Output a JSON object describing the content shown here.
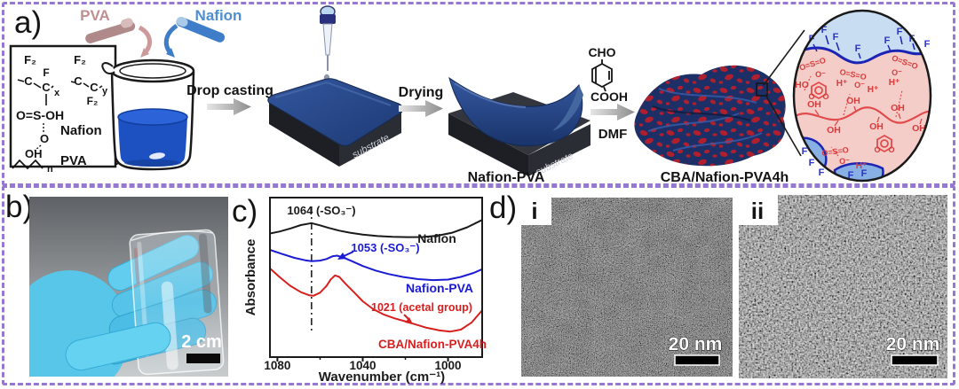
{
  "figure": {
    "panel_a": "a)",
    "panel_b": "b)",
    "panel_c": "c)",
    "panel_d": "d)",
    "tem_i": "i",
    "tem_ii": "ii",
    "border_color": "#9678d2"
  },
  "panel_a": {
    "pva_label": "PVA",
    "nafion_label": "Nafion",
    "structure": {
      "f2": "F₂",
      "c": "C",
      "f": "F",
      "x": "x",
      "y": "y",
      "sulfonic": "O=S-OH",
      "o": "O",
      "oh": "OH",
      "n": "n",
      "nafion": "Nafion",
      "pva": "PVA"
    },
    "step1": "Drop casting",
    "step2": "Drying",
    "step3_solvent": "DMF",
    "molecule": {
      "cho": "CHO",
      "cooh": "COOH"
    },
    "substrate_label": "substrate",
    "film1_label": "Nafion-PVA",
    "film2_label": "CBA/Nafion-PVA4h",
    "inset": {
      "f": "F",
      "oh": "OH",
      "ho": "HO",
      "h_plus": "H⁺",
      "sulfonate": "O=S=O",
      "o_minus": "O⁻",
      "o": "O"
    },
    "colors": {
      "liquid_blue": "#1d50c0",
      "film_navy": "#23407a",
      "membrane_red": "#b01f2e",
      "inset_blue": "#c8ddf1",
      "inset_pink": "#f4cdc9"
    }
  },
  "panel_b": {
    "scale_bar": "2 cm"
  },
  "panel_d": {
    "scale_bar_i": "20 nm",
    "scale_bar_ii": "20 nm"
  },
  "chart_data": {
    "type": "line",
    "title": "",
    "xlabel": "Wavenumber (cm⁻¹)",
    "ylabel": "Absorbance",
    "xlim": [
      1083.5,
      984
    ],
    "ylim": [
      0,
      1
    ],
    "x_ticks": [
      1080,
      1040,
      1000
    ],
    "x_minor_ticks": [
      1060,
      1020
    ],
    "grid": false,
    "legend_position": "inline-labels",
    "vline": {
      "x": 1064,
      "style": "dash-dot"
    },
    "series": [
      {
        "name": "Nafion",
        "color": "#1a1a1a",
        "points": [
          [
            1083.5,
            0.775
          ],
          [
            1079,
            0.787
          ],
          [
            1074,
            0.806
          ],
          [
            1069,
            0.828
          ],
          [
            1064,
            0.84
          ],
          [
            1060,
            0.826
          ],
          [
            1056,
            0.81
          ],
          [
            1051,
            0.793
          ],
          [
            1046,
            0.78
          ],
          [
            1040,
            0.768
          ],
          [
            1033,
            0.759
          ],
          [
            1026,
            0.754
          ],
          [
            1019,
            0.752
          ],
          [
            1012,
            0.753
          ],
          [
            1005,
            0.761
          ],
          [
            998,
            0.78
          ],
          [
            991,
            0.814
          ],
          [
            984,
            0.86
          ]
        ]
      },
      {
        "name": "Nafion-PVA",
        "color": "#1b1bd4",
        "points": [
          [
            1083.5,
            0.672
          ],
          [
            1078,
            0.648
          ],
          [
            1072,
            0.622
          ],
          [
            1067,
            0.607
          ],
          [
            1064,
            0.601
          ],
          [
            1060,
            0.605
          ],
          [
            1057,
            0.615
          ],
          [
            1054,
            0.633
          ],
          [
            1052,
            0.636
          ],
          [
            1049,
            0.624
          ],
          [
            1045,
            0.601
          ],
          [
            1040,
            0.571
          ],
          [
            1034,
            0.543
          ],
          [
            1028,
            0.521
          ],
          [
            1021,
            0.502
          ],
          [
            1014,
            0.489
          ],
          [
            1007,
            0.483
          ],
          [
            1000,
            0.486
          ],
          [
            994,
            0.503
          ],
          [
            988,
            0.528
          ],
          [
            984,
            0.551
          ]
        ]
      },
      {
        "name": "CBA/Nafion-PVA4h",
        "color": "#d81f1f",
        "points": [
          [
            1083.5,
            0.556
          ],
          [
            1079,
            0.502
          ],
          [
            1074,
            0.447
          ],
          [
            1069,
            0.407
          ],
          [
            1065,
            0.387
          ],
          [
            1063,
            0.385
          ],
          [
            1060,
            0.404
          ],
          [
            1057,
            0.446
          ],
          [
            1055,
            0.487
          ],
          [
            1053,
            0.512
          ],
          [
            1051,
            0.503
          ],
          [
            1048,
            0.459
          ],
          [
            1044,
            0.405
          ],
          [
            1040,
            0.35
          ],
          [
            1035,
            0.3
          ],
          [
            1030,
            0.266
          ],
          [
            1025,
            0.243
          ],
          [
            1021,
            0.228
          ],
          [
            1016,
            0.208
          ],
          [
            1010,
            0.184
          ],
          [
            1004,
            0.167
          ],
          [
            999,
            0.16
          ],
          [
            994,
            0.172
          ],
          [
            989,
            0.216
          ],
          [
            984,
            0.294
          ]
        ]
      }
    ],
    "annotations": [
      {
        "text": "1064 (-SO₃⁻)",
        "x": 1064,
        "color": "#1a1a1a"
      },
      {
        "text": "1053 (-SO₃⁻)",
        "x": 1053,
        "color": "#1b1bd4"
      },
      {
        "text": "1021 (acetal group)",
        "x": 1021,
        "color": "#d81f1f"
      }
    ]
  }
}
